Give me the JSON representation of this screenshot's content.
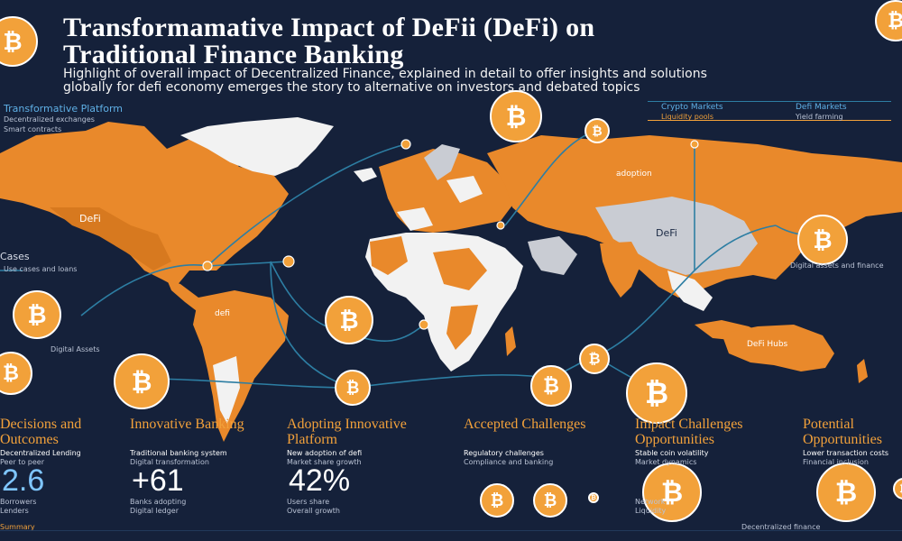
{
  "title_line1": "Transformamative Impact of DeFii (DeFi) on",
  "title_line2": "Traditional Finance Banking",
  "subtitle_line1": "Highlight of overall impact of Decentralized Finance, explained in detail to offer insights and solutions",
  "subtitle_line2": "globally for defi economy emerges the story to alternative on investors and debated topics",
  "left_top_heading": "Transformative Platform",
  "left_top_text_1": "Decentralized exchanges",
  "left_top_text_2": "Smart contracts",
  "right_top_heading_1": "Crypto Markets",
  "right_top_heading_2": "Defi Markets",
  "right_top_text_1": "Liquidity pools",
  "right_top_text_2": "Yield farming",
  "map_label_defi_left": "DeFi",
  "map_label_defi_right": "DeFi",
  "map_label_europe": "adoption",
  "map_label_south_america": "defi",
  "map_label_australia": "DeFi Hubs",
  "left_side_label_cases": "Cases",
  "left_side_text": "Use cases and loans",
  "left_side_label_small": "Digital Assets",
  "right_side_text": "Digital assets and finance",
  "columns": [
    {
      "heading": "Decisions and Outcomes",
      "text1": "Decentralized Lending",
      "text2": "Peer to peer",
      "stat": "2.6",
      "foot1": "Borrowers",
      "foot2": "Lenders"
    },
    {
      "heading": "Innovative Banking",
      "text1": "Traditional banking system",
      "text2": "Digital transformation",
      "stat": "+61",
      "foot1": "Banks adopting",
      "foot2": "Digital ledger"
    },
    {
      "heading": "Adopting Innovative Platform",
      "text1": "New adoption of defi",
      "text2": "Market share growth",
      "stat": "42%",
      "foot1": "Users share",
      "foot2": "Overall growth"
    },
    {
      "heading": "Accepted Challenges",
      "text1": "Regulatory challenges",
      "text2": "Compliance and banking",
      "stat": "",
      "foot1": "",
      "foot2": ""
    },
    {
      "heading": "Impact Challenges Opportunities",
      "text1": "Stable coin volatility",
      "text2": "Market dynamics",
      "stat": "",
      "foot1": "Network",
      "foot2": "Liquidity"
    },
    {
      "heading": "Potential Opportunities",
      "text1": "Lower transaction costs",
      "text2": "Financial inclusion",
      "stat": "",
      "foot1": "",
      "foot2": ""
    }
  ],
  "bottom_left_note": "Summary",
  "bottom_right_note": "Decentralized finance",
  "bitcoin_symbol": "₿",
  "colors": {
    "background": "#15213a",
    "accent": "#f2a13a",
    "land_orange": "#e9892b",
    "land_white": "#f2f2f2",
    "land_grey": "#c9ccd3",
    "line_blue": "#2d7ea3"
  },
  "icons": [
    "bitcoin-coin-icon",
    "world-map-graphic",
    "connection-line-graphic"
  ]
}
